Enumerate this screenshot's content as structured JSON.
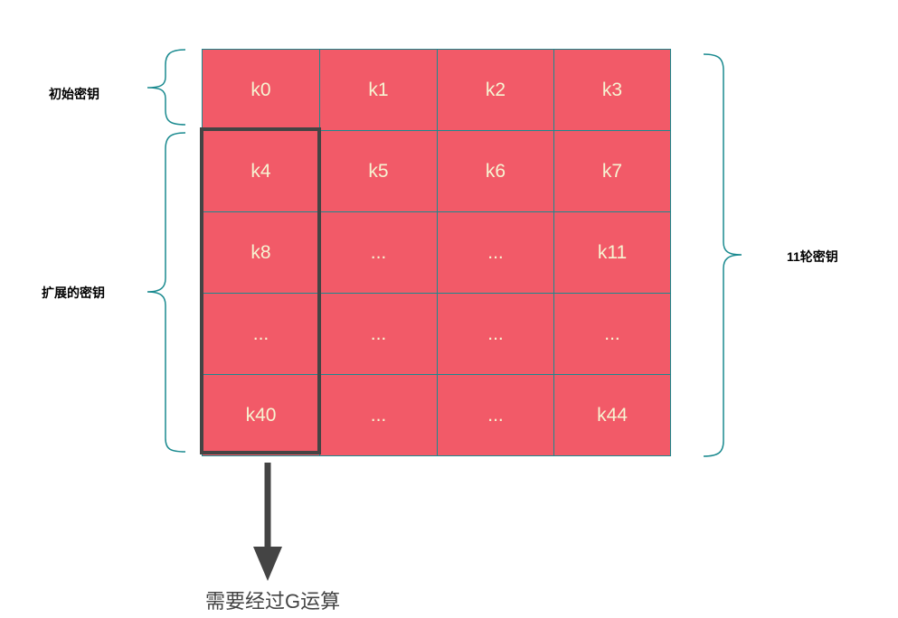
{
  "labels": {
    "initial_key": "初始密钥",
    "expanded_key": "扩展的密钥",
    "round_keys": "11轮密钥",
    "g_operation": "需要经过G运算"
  },
  "grid": {
    "rows": [
      [
        "k0",
        "k1",
        "k2",
        "k3"
      ],
      [
        "k4",
        "k5",
        "k6",
        "k7"
      ],
      [
        "k8",
        "...",
        "...",
        "k11"
      ],
      [
        "...",
        "...",
        "...",
        "..."
      ],
      [
        "k40",
        "...",
        "...",
        "k44"
      ]
    ],
    "highlighted_column": 0,
    "highlighted_rows": "1-4"
  },
  "colors": {
    "cell": "#f25a68",
    "border": "#1a8a8f",
    "text": "#f6f4d2",
    "highlight": "#444444"
  }
}
